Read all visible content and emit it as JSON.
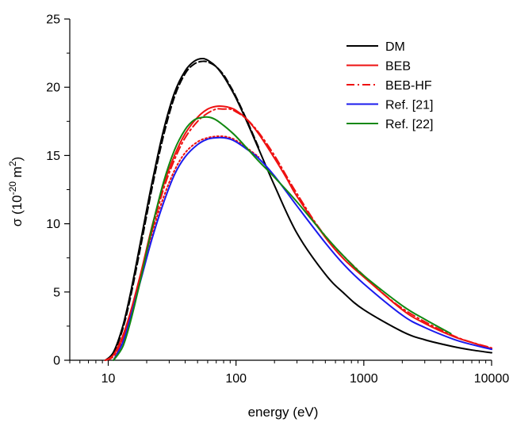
{
  "chart_data": {
    "type": "line",
    "xscale": "log",
    "xlabel": "energy (eV)",
    "ylabel_base": "σ (10",
    "ylabel_exp1": "-20",
    "ylabel_mid": " m",
    "ylabel_exp2": "2",
    "ylabel_end": ")",
    "xlim": [
      5,
      10000
    ],
    "ylim": [
      0,
      25
    ],
    "x_ticks": [
      10,
      100,
      1000,
      10000
    ],
    "x_tick_labels": [
      "10",
      "100",
      "1000",
      "10000"
    ],
    "y_ticks": [
      0,
      5,
      10,
      15,
      20,
      25
    ],
    "y_tick_labels": [
      "0",
      "5",
      "10",
      "15",
      "20",
      "25"
    ],
    "grid": false,
    "legend_position": "top-right",
    "legend": [
      {
        "label": "DM",
        "color": "#000000",
        "dash": "solid"
      },
      {
        "label": "BEB",
        "color": "#ee1111",
        "dash": "solid"
      },
      {
        "label": "BEB-HF",
        "color": "#ee1111",
        "dash": "dashdot"
      },
      {
        "label": "Ref. [21]",
        "color": "#1a1aee",
        "dash": "solid"
      },
      {
        "label": "Ref. [22]",
        "color": "#118811",
        "dash": "solid"
      }
    ],
    "series": [
      {
        "name": "DM",
        "color": "#000000",
        "dash": "solid",
        "x": [
          9.5,
          11,
          13,
          15,
          18,
          22,
          27,
          33,
          40,
          47,
          55,
          62,
          70,
          80,
          90,
          100,
          120,
          150,
          200,
          300,
          500,
          700,
          1000,
          2000,
          3000,
          5000,
          7000,
          10000
        ],
        "y": [
          0,
          0.6,
          2.5,
          5.0,
          8.8,
          13.0,
          16.8,
          19.6,
          21.2,
          21.9,
          22.1,
          21.9,
          21.5,
          20.8,
          20.0,
          19.2,
          17.6,
          15.5,
          12.8,
          9.3,
          6.3,
          4.9,
          3.7,
          2.1,
          1.5,
          1.0,
          0.75,
          0.55
        ]
      },
      {
        "name": "DM (dashed)",
        "color": "#000000",
        "dash": "dashed",
        "x": [
          9.5,
          11,
          13,
          15,
          18,
          22,
          27,
          33,
          40,
          47,
          55,
          62,
          70,
          80,
          90,
          100,
          120,
          150
        ],
        "y": [
          0,
          0.5,
          2.3,
          4.7,
          8.4,
          12.6,
          16.4,
          19.3,
          21.0,
          21.7,
          21.9,
          21.8,
          21.5,
          20.9,
          20.1,
          19.3,
          17.7,
          15.6
        ]
      },
      {
        "name": "BEB",
        "color": "#ee1111",
        "dash": "solid",
        "x": [
          9.5,
          11,
          13,
          15,
          18,
          22,
          27,
          33,
          40,
          50,
          60,
          70,
          80,
          90,
          100,
          120,
          150,
          200,
          250,
          300,
          500,
          700,
          1000,
          2000,
          3000,
          5000,
          7000,
          10000
        ],
        "y": [
          0,
          0.4,
          1.8,
          3.6,
          6.4,
          9.8,
          12.8,
          15.0,
          16.6,
          17.8,
          18.4,
          18.6,
          18.6,
          18.5,
          18.3,
          17.7,
          16.6,
          14.8,
          13.3,
          12.0,
          9.0,
          7.4,
          6.1,
          3.7,
          2.7,
          1.75,
          1.3,
          0.85
        ]
      },
      {
        "name": "BEB-HF",
        "color": "#ee1111",
        "dash": "dashdot",
        "x": [
          9.5,
          11,
          13,
          15,
          18,
          22,
          27,
          33,
          40,
          50,
          60,
          70,
          80,
          90,
          100,
          120,
          150,
          200,
          300,
          500,
          1000,
          2000,
          5000,
          10000
        ],
        "y": [
          0,
          0.3,
          1.6,
          3.4,
          6.2,
          9.5,
          12.5,
          14.7,
          16.3,
          17.5,
          18.1,
          18.4,
          18.4,
          18.4,
          18.2,
          17.7,
          16.7,
          15.0,
          12.2,
          9.1,
          6.2,
          3.8,
          1.8,
          0.9
        ]
      },
      {
        "name": "Ref. [21] dotted",
        "color": "#ee1111",
        "dash": "dotted",
        "x": [
          11,
          13,
          15,
          18,
          22,
          27,
          33,
          40,
          50,
          60,
          70,
          80,
          90,
          100,
          120,
          150
        ],
        "y": [
          0,
          1.5,
          3.5,
          6.3,
          9.3,
          11.9,
          13.9,
          15.2,
          16.0,
          16.3,
          16.4,
          16.4,
          16.3,
          16.1,
          15.6,
          14.9
        ]
      },
      {
        "name": "Ref. [21]",
        "color": "#1a1aee",
        "dash": "solid",
        "x": [
          11,
          13,
          15,
          18,
          22,
          27,
          33,
          40,
          50,
          60,
          70,
          80,
          90,
          100,
          120,
          150,
          200,
          300,
          500,
          700,
          1000,
          2000,
          3000,
          5000,
          7000,
          10000
        ],
        "y": [
          0,
          1.3,
          3.2,
          5.9,
          8.9,
          11.5,
          13.6,
          14.9,
          15.8,
          16.2,
          16.3,
          16.3,
          16.2,
          16.0,
          15.5,
          14.8,
          13.5,
          11.3,
          8.6,
          7.0,
          5.6,
          3.3,
          2.4,
          1.55,
          1.15,
          0.8
        ]
      },
      {
        "name": "Ref. [22]",
        "color": "#118811",
        "dash": "solid",
        "x": [
          11,
          13,
          15,
          18,
          22,
          27,
          33,
          40,
          47,
          55,
          62,
          70,
          80,
          90,
          100,
          120,
          150,
          200,
          300,
          500,
          700,
          1000,
          2000,
          3000,
          4800
        ],
        "y": [
          0,
          1.0,
          2.9,
          6.0,
          9.7,
          13.0,
          15.4,
          16.9,
          17.6,
          17.8,
          17.8,
          17.6,
          17.2,
          16.8,
          16.4,
          15.6,
          14.6,
          13.4,
          11.6,
          9.1,
          7.6,
          6.2,
          4.0,
          3.0,
          1.95
        ]
      }
    ]
  }
}
